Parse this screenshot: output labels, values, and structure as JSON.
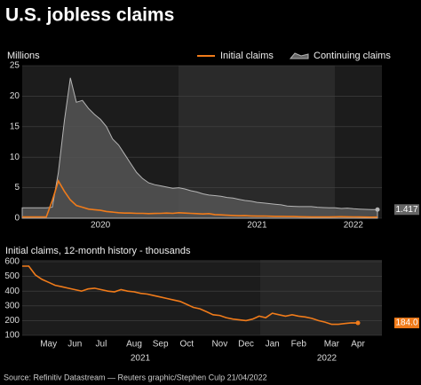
{
  "title": "U.S. jobless claims",
  "source": "Source: Refinitiv Datastream — Reuters graphic/Stephen Culp 21/04/2022",
  "chart_data": [
    {
      "type": "line",
      "y_label": "Millions",
      "categories": [
        null,
        null,
        null,
        null,
        null,
        null,
        null,
        null,
        null,
        null,
        null,
        null,
        null,
        "2020",
        null,
        null,
        null,
        null,
        null,
        null,
        null,
        null,
        null,
        null,
        null,
        null,
        null,
        null,
        null,
        null,
        null,
        null,
        null,
        null,
        null,
        null,
        null,
        null,
        null,
        "2021",
        null,
        null,
        null,
        null,
        null,
        null,
        null,
        null,
        null,
        null,
        null,
        null,
        null,
        null,
        null,
        "2022",
        null,
        null,
        null,
        null
      ],
      "ylim": [
        0,
        25
      ],
      "yticks": [
        0,
        5,
        10,
        15,
        20,
        25
      ],
      "grid": true,
      "series": [
        {
          "name": "Initial claims",
          "color": "#f07b1a",
          "kind": "line",
          "values": [
            0.21,
            0.21,
            0.21,
            0.21,
            0.21,
            2.9,
            6.1,
            4.4,
            3.0,
            2.1,
            1.8,
            1.5,
            1.4,
            1.3,
            1.1,
            1.0,
            0.9,
            0.85,
            0.85,
            0.8,
            0.8,
            0.75,
            0.78,
            0.8,
            0.85,
            0.8,
            0.9,
            0.85,
            0.8,
            0.75,
            0.7,
            0.75,
            0.6,
            0.55,
            0.5,
            0.45,
            0.4,
            0.42,
            0.38,
            0.35,
            0.36,
            0.34,
            0.31,
            0.3,
            0.28,
            0.27,
            0.25,
            0.23,
            0.21,
            0.2,
            0.2,
            0.21,
            0.23,
            0.25,
            0.23,
            0.22,
            0.21,
            0.19,
            0.18,
            0.184
          ]
        },
        {
          "name": "Continuing claims",
          "color": "#b5b5b5",
          "kind": "area",
          "end_label": "1.417",
          "values": [
            1.7,
            1.7,
            1.7,
            1.7,
            1.7,
            1.8,
            7.5,
            16,
            23,
            19,
            19.3,
            18,
            17,
            16.2,
            15,
            13,
            12,
            10.5,
            9,
            7.5,
            6.5,
            5.8,
            5.5,
            5.3,
            5.1,
            4.9,
            5.0,
            4.8,
            4.5,
            4.3,
            4.0,
            3.8,
            3.7,
            3.6,
            3.4,
            3.3,
            3.1,
            2.9,
            2.8,
            2.6,
            2.5,
            2.4,
            2.3,
            2.2,
            2.0,
            1.95,
            1.9,
            1.9,
            1.9,
            1.8,
            1.75,
            1.7,
            1.7,
            1.6,
            1.65,
            1.55,
            1.5,
            1.45,
            1.42,
            1.417
          ]
        }
      ]
    },
    {
      "type": "line",
      "title": "Initial claims, 12-month history - thousands",
      "categories": [
        null,
        null,
        null,
        null,
        "May",
        null,
        null,
        null,
        "Jun",
        null,
        null,
        null,
        "Jul",
        null,
        null,
        null,
        null,
        "Aug",
        null,
        null,
        null,
        "Sep",
        null,
        null,
        null,
        "Oct",
        null,
        null,
        null,
        null,
        "Nov",
        null,
        null,
        null,
        "Dec",
        null,
        null,
        null,
        "Jan",
        null,
        null,
        null,
        "Feb",
        null,
        null,
        null,
        null,
        "Mar",
        null,
        null,
        null,
        "Apr"
      ],
      "x_group_labels": [
        "2021",
        "2022"
      ],
      "ylim": [
        100,
        600
      ],
      "yticks": [
        100,
        200,
        300,
        400,
        500,
        600
      ],
      "grid": true,
      "series": [
        {
          "name": "Initial claims",
          "color": "#f07b1a",
          "kind": "line",
          "end_label": "184.0",
          "values": [
            570,
            570,
            510,
            480,
            460,
            440,
            430,
            420,
            410,
            400,
            415,
            420,
            410,
            400,
            395,
            410,
            400,
            395,
            385,
            380,
            370,
            360,
            350,
            340,
            330,
            310,
            290,
            280,
            260,
            240,
            235,
            220,
            210,
            205,
            200,
            210,
            230,
            220,
            250,
            240,
            230,
            240,
            230,
            225,
            215,
            200,
            190,
            175,
            175,
            180,
            185,
            184
          ]
        }
      ]
    }
  ]
}
